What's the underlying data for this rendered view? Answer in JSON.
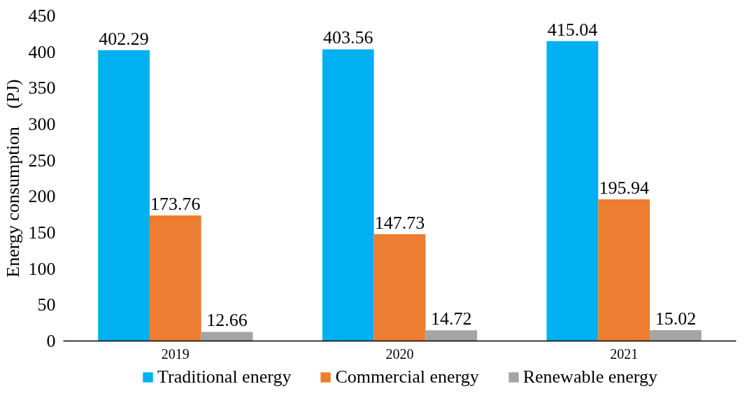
{
  "chart_data": {
    "type": "bar",
    "ylabel": "Energy consumption　(PJ)",
    "categories": [
      "2019",
      "2020",
      "2021"
    ],
    "series": [
      {
        "name": "Traditional energy",
        "color": "#00b0f0",
        "values": [
          402.29,
          403.56,
          415.04
        ]
      },
      {
        "name": "Commercial energy",
        "color": "#ed7d31",
        "values": [
          173.76,
          147.73,
          195.94
        ]
      },
      {
        "name": "Renewable energy",
        "color": "#a5a5a5",
        "values": [
          12.66,
          14.72,
          15.02
        ]
      }
    ],
    "ylim": [
      0,
      450
    ],
    "yticks": [
      0,
      50,
      100,
      150,
      200,
      250,
      300,
      350,
      400,
      450
    ],
    "data_labels": true,
    "grid": false,
    "legend": "bottom"
  }
}
